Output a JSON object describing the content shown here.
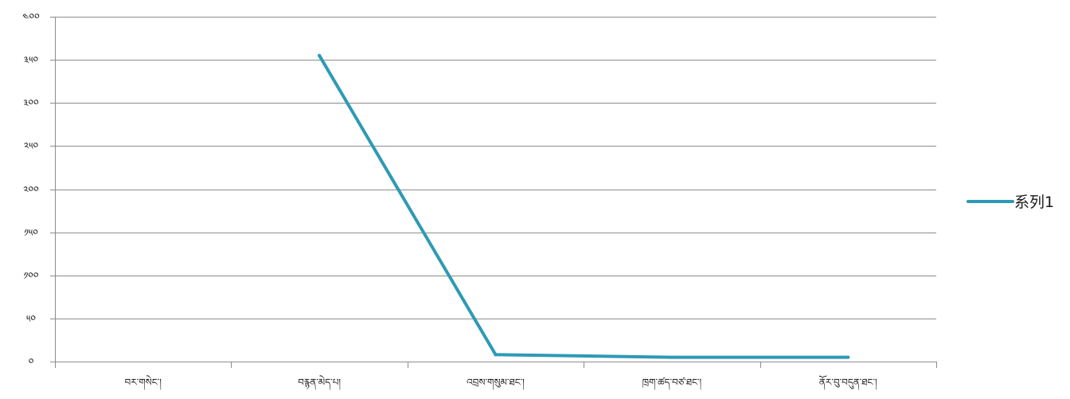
{
  "chart_data": {
    "type": "line",
    "title": "",
    "xlabel": "",
    "ylabel": "",
    "categories": [
      "བར་གསེང་།",
      "བརྙན་མེད་པ།",
      "འབྲས་གསུམ་ཐང་།",
      "ཁྲག་ཚད་བཙ་ཐང་།",
      "ནོར་བུ་བདུན་ཐང་།"
    ],
    "y_ticks": [
      "༠",
      "༥༠",
      "༡༠༠",
      "༡༥༠",
      "༢༠༠",
      "༢༥༠",
      "༣༠༠",
      "༣༥༠",
      "༤༠༠"
    ],
    "ylim": [
      0,
      400
    ],
    "grid": true,
    "legend_position": "right",
    "series": [
      {
        "name": "系列1",
        "color": "#2e9ab5",
        "values": [
          null,
          355,
          8,
          5,
          5
        ]
      }
    ]
  }
}
